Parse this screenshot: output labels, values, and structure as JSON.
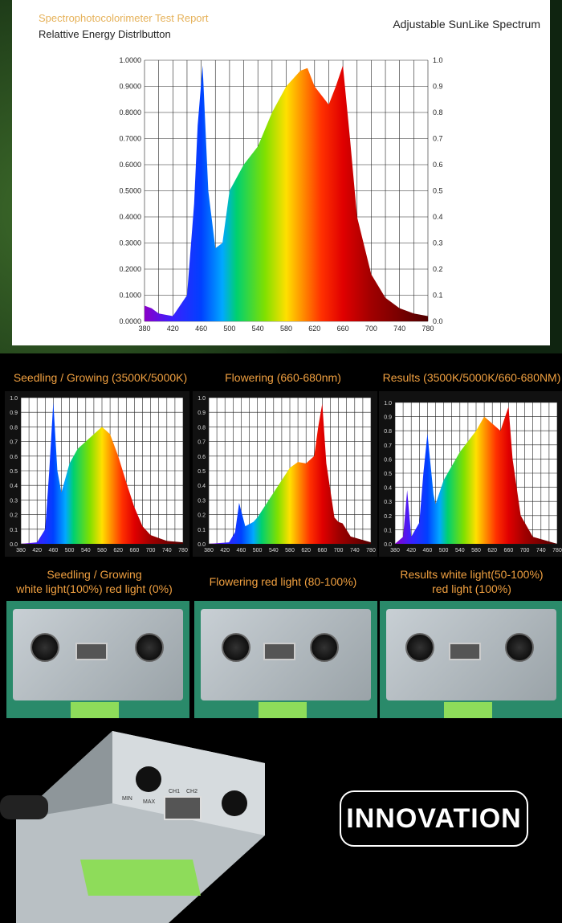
{
  "header": {
    "subtitle": "Spectrophotocolorimeter Test Report",
    "title": "Relattive Energy Distrlbutton",
    "right_title": "Adjustable SunLike Spectrum"
  },
  "sections": [
    {
      "title": "Seedling / Growing (3500K/5000K)",
      "caption_line1": "Seedling / Growing",
      "caption_line2": "white light(100%) red light  (0%)"
    },
    {
      "title": "Flowering (660-680nm)",
      "caption_line1": "Flowering red light  (80-100%)",
      "caption_line2": ""
    },
    {
      "title": "Results (3500K/5000K/660-680NM)",
      "caption_line1": "Results  white light(50-100%)",
      "caption_line2": "red light  (100%)"
    }
  ],
  "device_labels": {
    "ch1": "CH1",
    "ch2": "CH2",
    "min": "MIN",
    "max": "MAX"
  },
  "badge": "INNOVATION",
  "chart_data": [
    {
      "type": "area",
      "xlim": [
        380,
        780
      ],
      "ylim": [
        0,
        1
      ],
      "grid": true,
      "xticks": [
        380,
        420,
        460,
        500,
        540,
        580,
        620,
        660,
        700,
        740,
        780
      ],
      "yticks_left": [
        "0.0000",
        "0.1000",
        "0.2000",
        "0.3000",
        "0.4000",
        "0.5000",
        "0.6000",
        "0.7000",
        "0.8000",
        "0.9000",
        "1.0000"
      ],
      "yticks_right": [
        "0.0",
        "0.1",
        "0.2",
        "0.3",
        "0.4",
        "0.5",
        "0.6",
        "0.7",
        "0.8",
        "0.9",
        "1.0"
      ],
      "x": [
        380,
        390,
        400,
        420,
        440,
        450,
        455,
        462,
        470,
        480,
        490,
        500,
        520,
        540,
        560,
        580,
        600,
        610,
        620,
        640,
        650,
        660,
        670,
        680,
        700,
        720,
        740,
        760,
        780
      ],
      "y": [
        0.06,
        0.05,
        0.03,
        0.02,
        0.1,
        0.45,
        0.75,
        0.98,
        0.5,
        0.28,
        0.3,
        0.5,
        0.6,
        0.67,
        0.8,
        0.9,
        0.96,
        0.97,
        0.9,
        0.83,
        0.9,
        0.98,
        0.7,
        0.4,
        0.18,
        0.09,
        0.05,
        0.03,
        0.02
      ]
    },
    {
      "type": "area",
      "xlim": [
        380,
        780
      ],
      "ylim": [
        0,
        1
      ],
      "grid": true,
      "xticks": [
        380,
        420,
        460,
        500,
        540,
        580,
        620,
        660,
        700,
        740,
        780
      ],
      "yticks": [
        "0.0",
        "0.1",
        "0.2",
        "0.3",
        "0.4",
        "0.5",
        "0.6",
        "0.7",
        "0.8",
        "0.9",
        "1.0"
      ],
      "x": [
        380,
        420,
        440,
        450,
        460,
        470,
        480,
        500,
        520,
        540,
        560,
        580,
        600,
        620,
        640,
        660,
        680,
        700,
        740,
        780
      ],
      "y": [
        0,
        0.01,
        0.1,
        0.5,
        0.97,
        0.5,
        0.35,
        0.55,
        0.65,
        0.7,
        0.75,
        0.8,
        0.75,
        0.6,
        0.42,
        0.25,
        0.12,
        0.06,
        0.02,
        0.01
      ]
    },
    {
      "type": "area",
      "xlim": [
        380,
        780
      ],
      "ylim": [
        0,
        1
      ],
      "grid": true,
      "xticks": [
        380,
        420,
        460,
        500,
        540,
        580,
        620,
        660,
        700,
        740,
        780
      ],
      "yticks": [
        "0.0",
        "0.1",
        "0.2",
        "0.3",
        "0.4",
        "0.5",
        "0.6",
        "0.7",
        "0.8",
        "0.9",
        "1.0"
      ],
      "x": [
        380,
        430,
        445,
        455,
        470,
        490,
        500,
        540,
        580,
        600,
        620,
        640,
        650,
        660,
        670,
        690,
        700,
        710,
        730,
        780
      ],
      "y": [
        0,
        0.01,
        0.08,
        0.28,
        0.12,
        0.15,
        0.18,
        0.35,
        0.52,
        0.56,
        0.55,
        0.6,
        0.8,
        0.96,
        0.55,
        0.18,
        0.15,
        0.14,
        0.05,
        0.01
      ]
    },
    {
      "type": "area",
      "xlim": [
        380,
        780
      ],
      "ylim": [
        0,
        1
      ],
      "grid": true,
      "xticks": [
        380,
        420,
        460,
        500,
        540,
        580,
        620,
        660,
        700,
        740,
        780
      ],
      "yticks": [
        "0.0",
        "0.1",
        "0.2",
        "0.3",
        "0.4",
        "0.5",
        "0.6",
        "0.7",
        "0.8",
        "0.9",
        "1.0"
      ],
      "x": [
        380,
        400,
        410,
        420,
        440,
        450,
        460,
        475,
        480,
        500,
        540,
        580,
        600,
        620,
        640,
        660,
        670,
        690,
        700,
        720,
        780
      ],
      "y": [
        0,
        0.05,
        0.38,
        0.05,
        0.15,
        0.5,
        0.78,
        0.35,
        0.28,
        0.45,
        0.65,
        0.8,
        0.9,
        0.85,
        0.8,
        0.97,
        0.6,
        0.2,
        0.15,
        0.05,
        0
      ]
    }
  ]
}
